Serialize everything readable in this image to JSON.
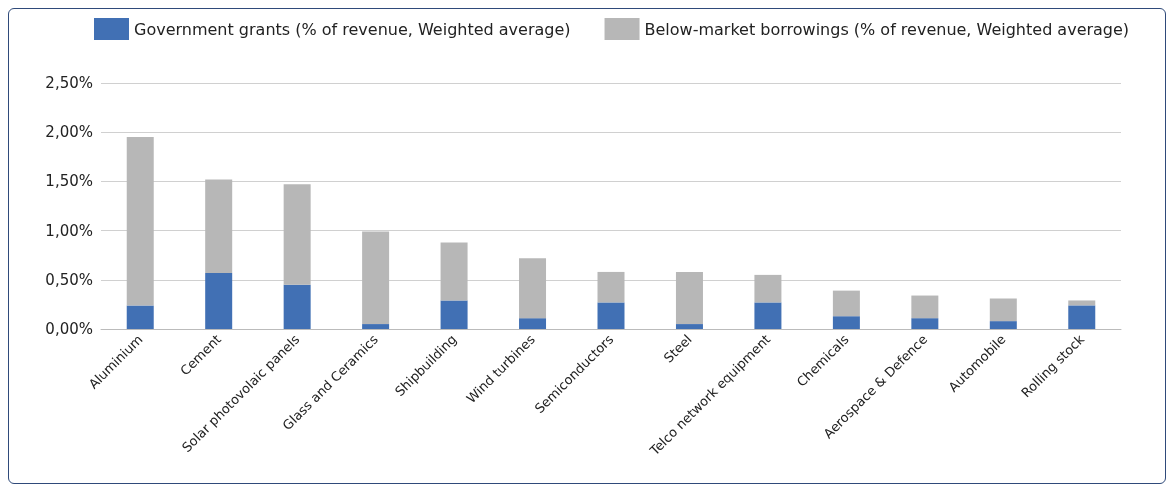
{
  "chart_data": {
    "type": "bar",
    "stacked": true,
    "legend": "top",
    "grid": "y",
    "categories": [
      "Aluminium",
      "Cement",
      "Solar photovolaic panels",
      "Glass and Ceramics",
      "Shipbuilding",
      "Wind turbines",
      "Semiconductors",
      "Steel",
      "Telco network equipment",
      "Chemicals",
      "Aerospace & Defence",
      "Automobile",
      "Rolling stock"
    ],
    "series": [
      {
        "name": "Government grants (% of revenue, Weighted average)",
        "color": "#4170b4",
        "values": [
          0.24,
          0.57,
          0.45,
          0.05,
          0.29,
          0.11,
          0.27,
          0.05,
          0.27,
          0.13,
          0.11,
          0.08,
          0.24
        ]
      },
      {
        "name": "Below-market borrowings (% of revenue, Weighted average)",
        "color": "#b7b7b7",
        "values": [
          1.71,
          0.95,
          1.02,
          0.94,
          0.59,
          0.61,
          0.31,
          0.53,
          0.28,
          0.26,
          0.23,
          0.23,
          0.05
        ]
      }
    ],
    "ylim": [
      0,
      2.5
    ],
    "yticks": [
      {
        "value": 0,
        "label": "0,00%"
      },
      {
        "value": 0.5,
        "label": "0,50%"
      },
      {
        "value": 1,
        "label": "1,00%"
      },
      {
        "value": 1.5,
        "label": "1,50%"
      },
      {
        "value": 2,
        "label": "2,00%"
      },
      {
        "value": 2.5,
        "label": "2,50%"
      }
    ]
  }
}
